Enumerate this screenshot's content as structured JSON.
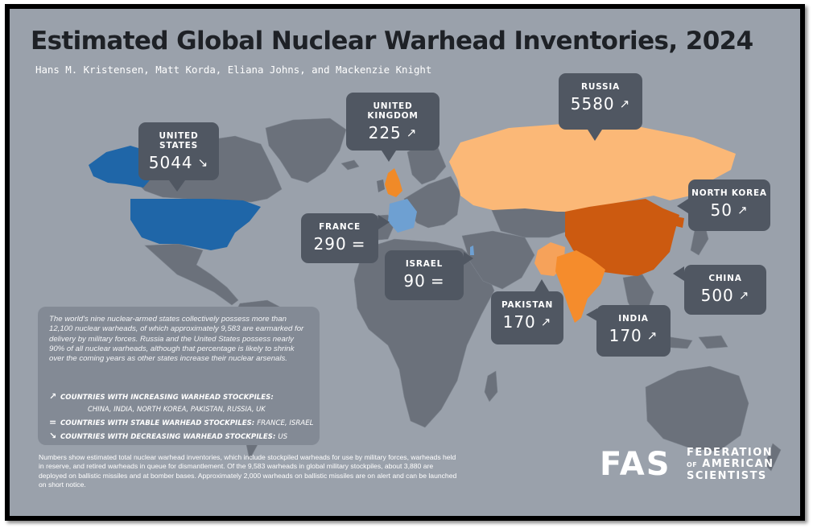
{
  "title": "Estimated Global Nuclear Warhead Inventories, 2024",
  "authors": "Hans M. Kristensen, Matt Korda, Eliana Johns, and Mackenzie Knight",
  "countries": [
    {
      "name": "UNITED STATES",
      "value": "5044",
      "trend": "decreasing",
      "symbol": "↘"
    },
    {
      "name": "UNITED KINGDOM",
      "value": "225",
      "trend": "increasing",
      "symbol": "↗"
    },
    {
      "name": "RUSSIA",
      "value": "5580",
      "trend": "increasing",
      "symbol": "↗"
    },
    {
      "name": "NORTH KOREA",
      "value": "50",
      "trend": "increasing",
      "symbol": "↗"
    },
    {
      "name": "FRANCE",
      "value": "290",
      "trend": "stable",
      "symbol": "="
    },
    {
      "name": "ISRAEL",
      "value": "90",
      "trend": "stable",
      "symbol": "="
    },
    {
      "name": "CHINA",
      "value": "500",
      "trend": "increasing",
      "symbol": "↗"
    },
    {
      "name": "PAKISTAN",
      "value": "170",
      "trend": "increasing",
      "symbol": "↗"
    },
    {
      "name": "INDIA",
      "value": "170",
      "trend": "increasing",
      "symbol": "↗"
    }
  ],
  "info_box": {
    "text": "The world's nine nuclear-armed states collectively possess more than 12,100 nuclear warheads, of which approximately 9,583 are earmarked for delivery by military forces. Russia and the United States possess nearly 90% of all nuclear warheads, although that percentage is likely to shrink over the coming years as other states increase their nuclear arsenals.",
    "legend": {
      "increasing_symbol": "↗",
      "increasing_label": "COUNTRIES WITH INCREASING WARHEAD STOCKPILES:",
      "increasing_list": "CHINA, INDIA, NORTH KOREA, PAKISTAN, RUSSIA, UK",
      "stable_symbol": "=",
      "stable_label": "COUNTRIES WITH STABLE WARHEAD STOCKPILES:",
      "stable_list": "FRANCE, ISRAEL",
      "decreasing_symbol": "↘",
      "decreasing_label": "COUNTRIES WITH DECREASING WARHEAD STOCKPILES:",
      "decreasing_list": "US"
    }
  },
  "footnote": "Numbers show estimated total nuclear warhead inventories, which include stockpiled warheads for use by military forces, warheads held in reserve, and retired warheads in queue for dismantlement. Of the 9,583 warheads in global military stockpiles, about 3,880 are deployed on ballistic missiles and at bomber bases. Approximately 2,000 warheads on ballistic missiles are on alert and can be launched on short notice.",
  "logo": {
    "mark": "FAS",
    "line1": "FEDERATION",
    "line2_small": "OF",
    "line2": "AMERICAN",
    "line3": "SCIENTISTS"
  },
  "colors": {
    "background": "#9aa1ab",
    "land": "#6b717b",
    "callout": "#505762",
    "united_states": "#1f66a8",
    "france": "#6ea0d2",
    "russia": "#fbb877",
    "china": "#cc5a10",
    "india": "#f58c2c",
    "pakistan": "#f6a25a",
    "united_kingdom": "#f08a28",
    "title": "#1e2126"
  }
}
